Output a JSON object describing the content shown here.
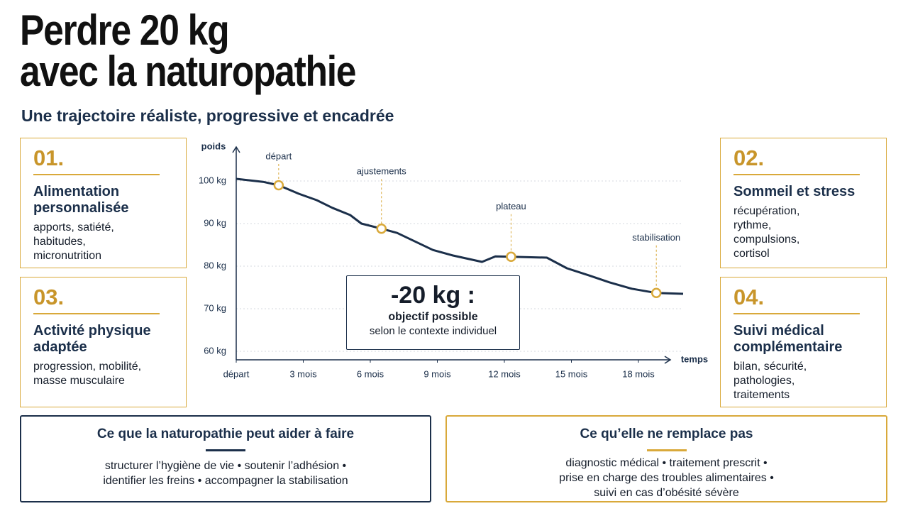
{
  "header": {
    "title_lines": [
      "Perdre 20 kg",
      "avec la naturopathie"
    ],
    "subtitle": "Une trajectoire réaliste, progressive et encadrée"
  },
  "cards": [
    {
      "number": "01.",
      "title": "Alimentation personnalisée",
      "text": "apports, satiété, habitudes, micronutrition"
    },
    {
      "number": "02.",
      "title": "Sommeil et stress",
      "text": "récupération, rythme, compulsions, cortisol"
    },
    {
      "number": "03.",
      "title": "Activité physique adaptée",
      "text": "progression, mobilité, masse musculaire"
    },
    {
      "number": "04.",
      "title": "Suivi médical complémentaire",
      "text": "bilan, sécurité, pathologies, traitements"
    }
  ],
  "chart_data": {
    "type": "line",
    "x_label": "temps",
    "y_label": "poids",
    "color": "#1b2f4a",
    "grid": true,
    "x": [
      0,
      1.2,
      1.9,
      2.8,
      3.6,
      4.3,
      5.1,
      5.6,
      6.5,
      7.2,
      8,
      8.8,
      9.7,
      11,
      11.6,
      12.3,
      13.9,
      14.8,
      15.8,
      16.7,
      17.7,
      18.8,
      20
    ],
    "values": [
      100.5,
      99.8,
      99,
      97,
      95.5,
      93.7,
      92,
      90,
      88.8,
      87.8,
      85.8,
      83.8,
      82.5,
      81,
      82.3,
      82.2,
      82,
      79.5,
      77.8,
      76.2,
      74.7,
      73.7,
      73.5
    ],
    "xlim": [
      0,
      20
    ],
    "ylim": [
      58,
      108
    ],
    "xticks": [
      {
        "value": 0,
        "label": "départ"
      },
      {
        "value": 3,
        "label": "3 mois"
      },
      {
        "value": 6,
        "label": "6 mois"
      },
      {
        "value": 9,
        "label": "9 mois"
      },
      {
        "value": 12,
        "label": "12 mois"
      },
      {
        "value": 15,
        "label": "15 mois"
      },
      {
        "value": 18,
        "label": "18 mois"
      }
    ],
    "yticks": [
      {
        "value": 60,
        "label": "60 kg"
      },
      {
        "value": 70,
        "label": "70 kg"
      },
      {
        "value": 80,
        "label": "80 kg"
      },
      {
        "value": 90,
        "label": "90 kg"
      },
      {
        "value": 100,
        "label": "100 kg"
      }
    ],
    "annotations": [
      {
        "text": "départ",
        "x": 1.9,
        "y": 99
      },
      {
        "text": "ajustements",
        "x": 6.5,
        "y": 88.8
      },
      {
        "text": "plateau",
        "x": 12.3,
        "y": 82.2
      },
      {
        "text": "stabilisation",
        "x": 18.8,
        "y": 73.7
      }
    ],
    "callout": {
      "headline": "-20 kg :",
      "line1": "objectif possible",
      "line2": "selon le contexte individuel"
    }
  },
  "boxes": [
    {
      "title": "Ce que la naturopathie peut aider à faire",
      "lines": [
        "structurer l’hygiène de vie • soutenir l’adhésion •",
        "identifier les freins • accompagner la stabilisation"
      ]
    },
    {
      "title": "Ce qu’elle ne remplace pas",
      "lines": [
        "diagnostic médical • traitement prescrit •",
        "prise en charge des troubles alimentaires •",
        "suivi en cas d’obésité sévère"
      ]
    }
  ]
}
